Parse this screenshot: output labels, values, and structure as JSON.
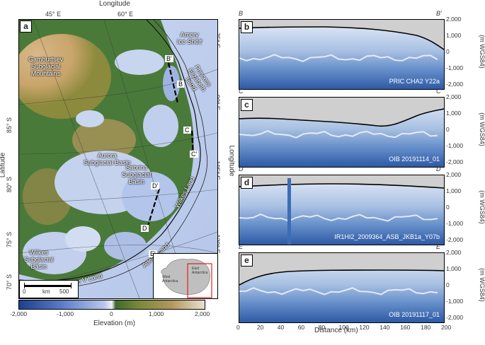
{
  "map": {
    "panel_label": "a",
    "top_axis_title": "Longitude",
    "left_axis_title": "Latitude",
    "right_axis_title": "Longitude",
    "top_ticks": [
      "45° E",
      "60° E"
    ],
    "right_ticks": [
      "75° E",
      "90° E",
      "105° E",
      "120° E"
    ],
    "left_ticks": [
      "85° S",
      "80° S",
      "75° S",
      "70° S"
    ],
    "regions": {
      "amery": "Amery\nIce Shelf",
      "gamburtsev": "Gamburtsev\nSubglacial\nMountains",
      "princess": "Princess\nElizabeth\nLand",
      "aurora": "Aurora\nSubglacial Basin",
      "sabrina": "Sabrina\nSubglacial\nBasin",
      "wilkes_land": "Wilkes Land",
      "wilkes_basin": "Wilkes\nSubglacial\nBasin",
      "adelie": "Adélie Land",
      "george": "George V Land"
    },
    "profile_markers": [
      "B",
      "B'",
      "C",
      "C'",
      "D",
      "D'",
      "E",
      "E'"
    ],
    "scalebar": {
      "zero": "0",
      "unit": "km",
      "max": "500"
    },
    "inset": {
      "west": "West\nAntarctica",
      "east": "East\nAntarctica"
    },
    "colorbar": {
      "ticks": [
        "-2,000",
        "-1,000",
        "0",
        "1,000",
        "2,000"
      ],
      "label": "Elevation (m)"
    }
  },
  "profiles": {
    "y_axis_title": "Elevation\n(m WGS84)",
    "y_ticks": [
      "2,000",
      "1,000",
      "0",
      "-1,000",
      "-2,000"
    ],
    "x_ticks": [
      "0",
      "20",
      "40",
      "60",
      "80",
      "100",
      "120",
      "140",
      "160",
      "180",
      "200"
    ],
    "x_axis_title": "Distance (km)",
    "panels": [
      {
        "letter": "b",
        "left_marker": "B",
        "right_marker": "B'",
        "caption": "PRIC CHA2 Y22a"
      },
      {
        "letter": "c",
        "left_marker": "C",
        "right_marker": "C'",
        "caption": "OIB 20191114_01"
      },
      {
        "letter": "d",
        "left_marker": "D",
        "right_marker": "D'",
        "caption": "IR1HI2_2009364_ASB_JKB1a_Y07b"
      },
      {
        "letter": "e",
        "left_marker": "E",
        "right_marker": "E'",
        "caption": "OIB 20191117_01"
      }
    ]
  }
}
